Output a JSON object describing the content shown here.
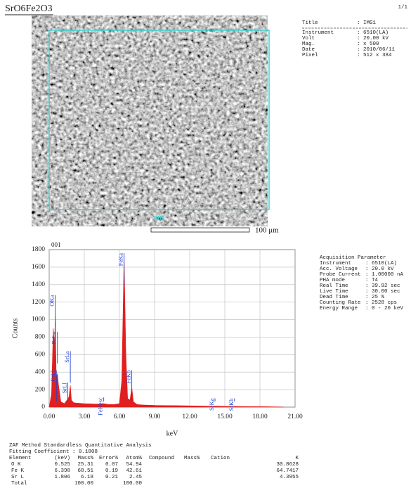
{
  "header": {
    "title": "SrO6Fe2O3",
    "page": "1/1"
  },
  "image": {
    "region_label": "001",
    "scale_label": "100 μm"
  },
  "info": [
    {
      "label": "Title",
      "value": ": IMG1"
    },
    {
      "label": "Instrument",
      "value": ": 6510(LA)"
    },
    {
      "label": "Volt",
      "value": ": 20.00 kV"
    },
    {
      "label": "Mag.",
      "value": ": x 500"
    },
    {
      "label": "Date",
      "value": ": 2010/06/11"
    },
    {
      "label": "Pixel",
      "value": ": 512 x 384"
    }
  ],
  "chart_data": {
    "type": "area",
    "title": "001",
    "x_label": "keV",
    "y_label": "Counts",
    "color": "#e02020",
    "x": [
      0,
      0.2,
      0.35,
      0.45,
      0.525,
      0.6,
      0.705,
      0.8,
      1.0,
      1.3,
      1.58,
      1.7,
      1.806,
      1.9,
      2.1,
      2.5,
      3,
      3.5,
      4,
      4.66,
      5,
      5.5,
      6.0,
      6.2,
      6.398,
      6.55,
      6.7,
      6.9,
      7.057,
      7.2,
      7.5,
      8,
      9,
      10,
      12,
      14,
      14.16,
      15,
      16,
      18,
      19,
      20
    ],
    "values": [
      0,
      150,
      900,
      700,
      1050,
      350,
      380,
      250,
      60,
      40,
      90,
      120,
      250,
      80,
      50,
      45,
      40,
      38,
      35,
      40,
      32,
      30,
      40,
      300,
      1720,
      600,
      100,
      80,
      220,
      60,
      30,
      25,
      20,
      18,
      15,
      10,
      12,
      9,
      8,
      6,
      4,
      2
    ],
    "xlim": [
      0,
      21
    ],
    "xticks": [
      {
        "value": 0,
        "label": "0.00"
      },
      {
        "value": 3,
        "label": "3.00"
      },
      {
        "value": 6,
        "label": "6.00"
      },
      {
        "value": 9,
        "label": "9.00"
      },
      {
        "value": 12,
        "label": "12.00"
      },
      {
        "value": 15,
        "label": "15.00"
      },
      {
        "value": 18,
        "label": "18.00"
      },
      {
        "value": 21,
        "label": "21.00"
      }
    ],
    "ylim": [
      0,
      1800
    ],
    "yticks": [
      0,
      200,
      400,
      600,
      800,
      1000,
      1200,
      1400,
      1600,
      1800
    ],
    "grid": true,
    "annotations": [
      {
        "text": "OKa",
        "x": 0.525,
        "y": 1280
      },
      {
        "text": "FeLl",
        "x": 0.615,
        "y": 420
      },
      {
        "text": "FeLa",
        "x": 0.705,
        "y": 860
      },
      {
        "text": "SrLl",
        "x": 1.58,
        "y": 280
      },
      {
        "text": "SrLa",
        "x": 1.806,
        "y": 640
      },
      {
        "text": "FeKesc",
        "x": 4.66,
        "y": 110
      },
      {
        "text": "FeKa",
        "x": 6.398,
        "y": 1760
      },
      {
        "text": "FeKb",
        "x": 7.057,
        "y": 420
      },
      {
        "text": "SrKa",
        "x": 14.16,
        "y": 100
      },
      {
        "text": "SrKb",
        "x": 15.83,
        "y": 100
      }
    ]
  },
  "acquisition": {
    "title": "Acquisition Parameter",
    "items": [
      {
        "label": "Instrument",
        "value": ": 6510(LA)"
      },
      {
        "label": "Acc. Voltage",
        "value": ": 20.0 kV"
      },
      {
        "label": "Probe Current",
        "value": ": 1.00000 nA"
      },
      {
        "label": "PHA mode",
        "value": ": T4"
      },
      {
        "label": "Real Time",
        "value": ": 39.92 sec"
      },
      {
        "label": "Live Time",
        "value": ": 30.00 sec"
      },
      {
        "label": "Dead Time",
        "value": ": 25 %"
      },
      {
        "label": "Counting Rate",
        "value": ": 2528 cps"
      },
      {
        "label": "Energy Range",
        "value": ": 0 - 20 keV"
      }
    ]
  },
  "table": {
    "method": "ZAF Method Standardless Quantitative Analysis",
    "fitting": "Fitting Coefficient : 0.1808",
    "header": {
      "element": "Element",
      "kev": "(keV)",
      "mass": "Mass%",
      "error": "Error%",
      "atom": "Atom%",
      "compound": "Compound",
      "cmass": "Mass%",
      "cation": "Cation",
      "k": "K"
    },
    "rows": [
      {
        "element": "O K",
        "kev": "0.525",
        "mass": "25.31",
        "error": "0.07",
        "atom": "54.94",
        "k": "30.8628"
      },
      {
        "element": "Fe K",
        "kev": "6.398",
        "mass": "68.51",
        "error": "0.19",
        "atom": "42.61",
        "k": "64.7417"
      },
      {
        "element": "Sr L",
        "kev": "1.806",
        "mass": "6.18",
        "error": "0.21",
        "atom": "2.45",
        "k": "4.3955"
      },
      {
        "element": "Total",
        "mass": "100.00",
        "atom": "100.00"
      }
    ]
  }
}
